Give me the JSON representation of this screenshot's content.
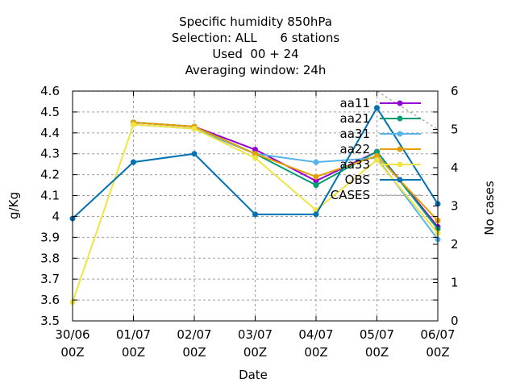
{
  "chart_data": {
    "type": "line",
    "title": [
      "Specific humidity 850hPa",
      "Selection: ALL      6 stations",
      "Used  00 + 24",
      "Averaging window: 24h"
    ],
    "xlabel": "Date",
    "ylabel": "g/Kg",
    "y2label": "No cases",
    "categories": [
      [
        "30/06",
        "00Z"
      ],
      [
        "01/07",
        "00Z"
      ],
      [
        "02/07",
        "00Z"
      ],
      [
        "03/07",
        "00Z"
      ],
      [
        "04/07",
        "00Z"
      ],
      [
        "05/07",
        "00Z"
      ],
      [
        "06/07",
        "00Z"
      ]
    ],
    "ylim": [
      3.5,
      4.6
    ],
    "yticks": [
      "3.5",
      "3.6",
      "3.7",
      "3.8",
      "3.9",
      "4",
      "4.1",
      "4.2",
      "4.3",
      "4.4",
      "4.5",
      "4.6"
    ],
    "y2lim": [
      0,
      6
    ],
    "y2ticks": [
      "0",
      "1",
      "2",
      "3",
      "4",
      "5",
      "6"
    ],
    "grid": true,
    "legend_position": "top-right",
    "series": [
      {
        "name": "aa11",
        "color": "#9400d3",
        "axis": "y",
        "values": [
          null,
          4.45,
          4.43,
          4.32,
          4.17,
          4.31,
          3.95
        ]
      },
      {
        "name": "aa21",
        "color": "#009e73",
        "axis": "y",
        "values": [
          null,
          4.45,
          4.43,
          4.3,
          4.15,
          4.31,
          3.94
        ]
      },
      {
        "name": "aa31",
        "color": "#56b4e9",
        "axis": "y",
        "values": [
          null,
          4.44,
          4.42,
          4.3,
          4.26,
          4.28,
          3.89
        ]
      },
      {
        "name": "aa22",
        "color": "#e69f00",
        "axis": "y",
        "values": [
          null,
          4.45,
          4.43,
          4.3,
          4.19,
          4.29,
          3.98
        ]
      },
      {
        "name": "aa33",
        "color": "#f0e442",
        "axis": "y",
        "values": [
          3.59,
          4.44,
          4.42,
          4.28,
          4.03,
          4.27,
          3.92
        ]
      },
      {
        "name": "OBS",
        "color": "#0072b2",
        "axis": "y",
        "values": [
          3.99,
          4.26,
          4.3,
          4.01,
          4.01,
          4.52,
          4.06
        ]
      },
      {
        "name": "CASES",
        "color": "#a0a0a0",
        "axis": "y2",
        "dashed": true,
        "values": [
          6,
          6,
          6,
          6,
          6,
          6,
          5
        ]
      }
    ]
  }
}
